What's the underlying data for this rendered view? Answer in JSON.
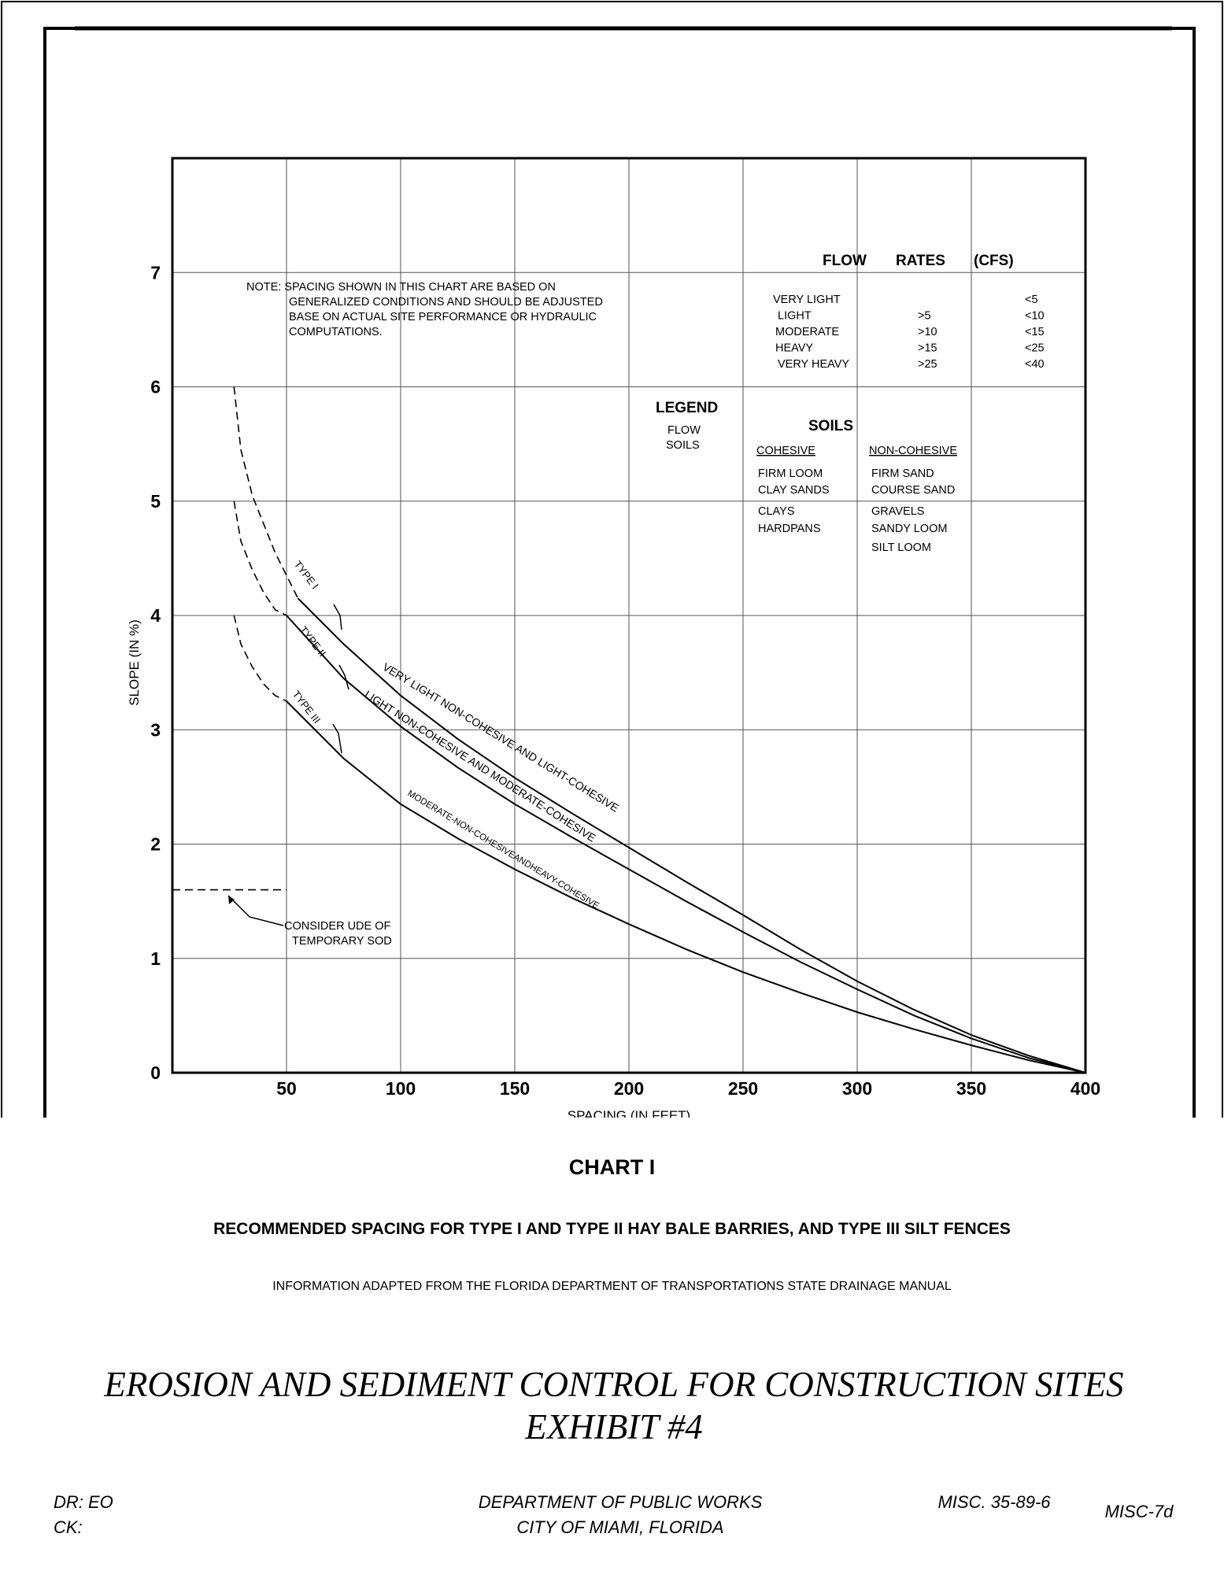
{
  "chart_data": {
    "type": "line",
    "title": "CHART I",
    "subtitle": "RECOMMENDED SPACING FOR TYPE I AND TYPE II HAY BALE BARRIES, AND TYPE III SILT FENCES",
    "source": "INFORMATION ADAPTED FROM THE FLORIDA DEPARTMENT OF TRANSPORTATIONS STATE DRAINAGE MANUAL",
    "xlabel": "SPACING (IN FEET)",
    "ylabel": "SLOPE (IN %)",
    "xlim": [
      0,
      400
    ],
    "ylim": [
      0,
      8
    ],
    "x_ticks": [
      50,
      100,
      150,
      200,
      250,
      300,
      350,
      400
    ],
    "y_ticks": [
      0,
      1,
      2,
      3,
      4,
      5,
      6,
      7
    ],
    "grid": true,
    "series": [
      {
        "name": "TYPE I",
        "description": "VERY LIGHT NON-COHESIVE AND LIGHT-COHESIVE",
        "dashed": {
          "x": [
            27,
            30,
            35,
            40,
            45,
            50,
            55
          ],
          "y": [
            6.0,
            5.45,
            5.05,
            4.8,
            4.55,
            4.35,
            4.15
          ]
        },
        "solid": {
          "x": [
            55,
            75,
            100,
            125,
            150,
            175,
            200,
            225,
            250,
            275,
            300,
            325,
            350,
            375,
            400
          ],
          "y": [
            4.15,
            3.75,
            3.3,
            2.92,
            2.58,
            2.27,
            1.97,
            1.67,
            1.38,
            1.08,
            0.8,
            0.55,
            0.33,
            0.15,
            0.0
          ]
        }
      },
      {
        "name": "TYPE II",
        "description": "LIGHT NON-COHESIVE AND MODERATE-COHESIVE",
        "dashed": {
          "x": [
            27,
            30,
            35,
            40,
            45,
            50
          ],
          "y": [
            5.0,
            4.65,
            4.4,
            4.2,
            4.05,
            4.0
          ]
        },
        "solid": {
          "x": [
            50,
            75,
            100,
            125,
            150,
            175,
            200,
            225,
            250,
            275,
            300,
            325,
            350,
            375,
            400
          ],
          "y": [
            4.0,
            3.45,
            3.03,
            2.67,
            2.35,
            2.06,
            1.78,
            1.5,
            1.23,
            0.97,
            0.73,
            0.5,
            0.3,
            0.13,
            0.0
          ]
        }
      },
      {
        "name": "TYPE III",
        "description": "MODERATE-NON-COHESIVE AND HEAVY-COHESIVE",
        "dashed": {
          "x": [
            27,
            30,
            35,
            40,
            45,
            50
          ],
          "y": [
            4.0,
            3.75,
            3.55,
            3.4,
            3.3,
            3.25
          ]
        },
        "solid": {
          "x": [
            50,
            75,
            100,
            125,
            150,
            175,
            200,
            225,
            250,
            275,
            300,
            325,
            350,
            375,
            400
          ],
          "y": [
            3.25,
            2.75,
            2.35,
            2.05,
            1.78,
            1.53,
            1.3,
            1.08,
            0.88,
            0.7,
            0.53,
            0.38,
            0.24,
            0.11,
            0.0
          ]
        }
      }
    ],
    "sod_line": {
      "x": [
        0,
        50
      ],
      "y": 1.6
    },
    "annotations": {
      "note": [
        "NOTE: SPACING SHOWN IN THIS CHART ARE BASED ON",
        "GENERALIZED CONDITIONS AND SHOULD BE ADJUSTED",
        "BASE ON ACTUAL SITE PERFORMANCE OR HYDRAULIC",
        "COMPUTATIONS."
      ],
      "sod": [
        "CONSIDER UDE OF",
        "TEMPORARY SOD"
      ],
      "type_labels": [
        "TYPE I",
        "TYPE II",
        "TYPE III"
      ],
      "curve_labels": [
        "VERY LIGHT NON-COHESIVE AND LIGHT-COHESIVE",
        "LIGHT NON-COHESIVE AND MODERATE-COHESIVE",
        "MODERATE-NON-COHESIVEANDHEAVY-COHESIVE"
      ]
    },
    "flow_rates": {
      "headers": [
        "FLOW",
        "RATES",
        "(CFS)"
      ],
      "rows": [
        {
          "label": "VERY LIGHT",
          "min": "",
          "max": "<5"
        },
        {
          "label": "LIGHT",
          "min": ">5",
          "max": "<10"
        },
        {
          "label": "MODERATE",
          "min": ">10",
          "max": "<15"
        },
        {
          "label": "HEAVY",
          "min": ">15",
          "max": "<25"
        },
        {
          "label": "VERY HEAVY",
          "min": ">25",
          "max": "<40"
        }
      ]
    },
    "legend": {
      "title": "LEGEND",
      "items": [
        "FLOW",
        "SOILS"
      ],
      "soils_title": "SOILS",
      "cohesive_header": "COHESIVE",
      "non_cohesive_header": "NON-COHESIVE",
      "cohesive": [
        "FIRM LOOM",
        "CLAY SANDS",
        "CLAYS",
        "HARDPANS"
      ],
      "non_cohesive": [
        "FIRM SAND",
        "COURSE SAND",
        "GRAVELS",
        "SANDY LOOM",
        "SILT LOOM"
      ]
    }
  },
  "document": {
    "title_line1": "EROSION AND SEDIMENT CONTROL FOR CONSTRUCTION SITES",
    "title_line2": "EXHIBIT #4"
  },
  "title_block": {
    "dr": "DR: EO",
    "ck": "CK:",
    "dept": "DEPARTMENT OF PUBLIC WORKS",
    "city": "CITY OF MIAMI, FLORIDA",
    "misc_num": "MISC. 35-89-6",
    "misc_code": "MISC-7d"
  }
}
